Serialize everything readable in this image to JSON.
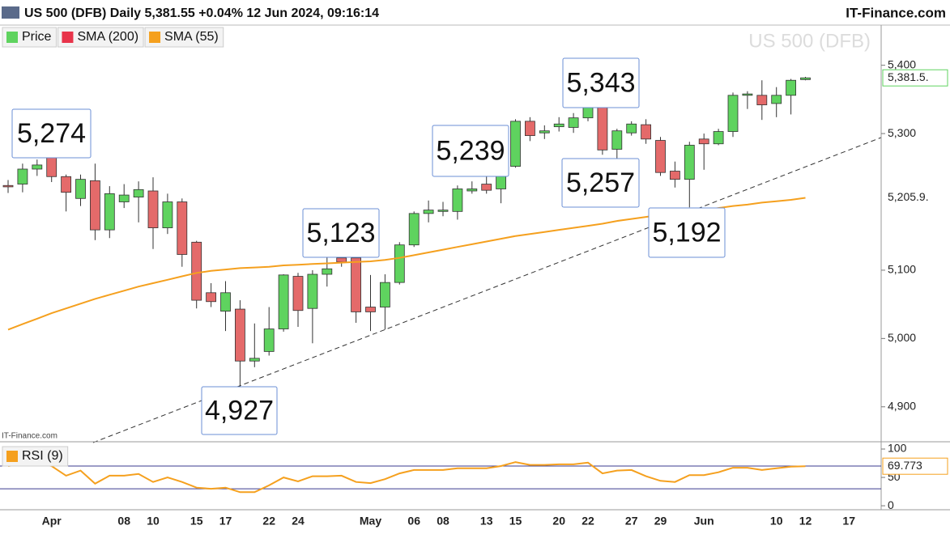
{
  "chart_data": [
    {
      "type": "candlestick",
      "title": "US 500 (DFB) Daily 5,381.55 +0.04% 12 Jun 2024, 09:16:14",
      "source": "IT-Finance.com",
      "watermark": "US 500 (DFB)",
      "categories": [
        null,
        null,
        null,
        "Apr",
        null,
        null,
        null,
        null,
        "08",
        null,
        "10",
        null,
        null,
        "15",
        null,
        "17",
        null,
        null,
        "22",
        null,
        "24",
        null,
        null,
        null,
        null,
        "May",
        null,
        null,
        "06",
        null,
        "08",
        null,
        null,
        "13",
        null,
        "15",
        null,
        null,
        "20",
        null,
        "22",
        null,
        null,
        "27",
        null,
        "29",
        null,
        null,
        "Jun",
        null,
        null,
        null,
        null,
        "10",
        null,
        "12",
        null,
        null,
        "17",
        null,
        null
      ],
      "series": [
        {
          "name": "Price",
          "color": "#5fd35f",
          "down_color": "#e46a6a",
          "last_label": "5,381.5.",
          "open": [
            5224,
            5226,
            5248,
            5273,
            5237,
            5205,
            5231,
            5159,
            5200,
            5207,
            5216,
            5162,
            5200,
            5141,
            5067,
            5040,
            5043,
            4967,
            4981,
            5014,
            5091,
            5044,
            5094,
            5118,
            5118,
            5046,
            5046,
            5082,
            5137,
            5183,
            5186,
            5186,
            5216,
            5226,
            5219,
            5252,
            5318,
            5301,
            5310,
            5309,
            5323,
            5342,
            5277,
            5301,
            5313,
            5290,
            5245,
            5233,
            5292,
            5285,
            5303,
            5356,
            5356,
            5344,
            5356,
            5379,
            null,
            null,
            null,
            null,
            null
          ],
          "high": [
            5232,
            5256,
            5262,
            5274,
            5240,
            5240,
            5256,
            5223,
            5226,
            5230,
            5236,
            5212,
            5205,
            5143,
            5081,
            5084,
            5056,
            5022,
            5046,
            5094,
            5096,
            5100,
            5120,
            5123,
            5123,
            5093,
            5094,
            5141,
            5186,
            5202,
            5200,
            5224,
            5230,
            5238,
            5253,
            5321,
            5324,
            5312,
            5324,
            5330,
            5343,
            5343,
            5307,
            5318,
            5321,
            5295,
            5259,
            5288,
            5300,
            5307,
            5360,
            5362,
            5378,
            5368,
            5380,
            5383,
            null,
            null,
            null,
            null,
            null
          ],
          "low": [
            5213,
            5214,
            5238,
            5229,
            5186,
            5194,
            5144,
            5147,
            5191,
            5170,
            5131,
            5153,
            5105,
            5044,
            5046,
            5011,
            4927,
            4958,
            4975,
            5010,
            5017,
            4993,
            5076,
            5105,
            5023,
            5011,
            5013,
            5079,
            5134,
            5170,
            5179,
            5174,
            5212,
            5212,
            5198,
            5250,
            5289,
            5292,
            5303,
            5301,
            5318,
            5269,
            5257,
            5297,
            5285,
            5238,
            5221,
            5192,
            5247,
            5283,
            5295,
            5336,
            5320,
            5324,
            5328,
            5378,
            null,
            null,
            null,
            null,
            null
          ],
          "close": [
            5222,
            5248,
            5254,
            5237,
            5214,
            5233,
            5159,
            5212,
            5210,
            5218,
            5162,
            5200,
            5123,
            5056,
            5054,
            5067,
            4967,
            4971,
            5014,
            5093,
            5041,
            5094,
            5102,
            5112,
            5039,
            5039,
            5082,
            5137,
            5183,
            5188,
            5188,
            5219,
            5219,
            5217,
            5252,
            5318,
            5297,
            5304,
            5314,
            5323,
            5342,
            5276,
            5304,
            5314,
            5292,
            5243,
            5233,
            5283,
            5285,
            5303,
            5356,
            5358,
            5342,
            5356,
            5378,
            5381.55,
            null,
            null,
            null,
            null,
            null
          ]
        },
        {
          "name": "SMA (200)",
          "color": "#e8344a"
        },
        {
          "name": "SMA (55)",
          "color": "#f5a01e",
          "last_label": "5,205.9.",
          "values": [
            5013,
            5021,
            5029,
            5037,
            5044,
            5051,
            5058,
            5064,
            5070,
            5076,
            5081,
            5086,
            5091,
            5096,
            5099,
            5101,
            5103,
            5104,
            5105,
            5107,
            5108,
            5109,
            5110,
            5111,
            5112,
            5113,
            5115,
            5118,
            5122,
            5126,
            5130,
            5134,
            5138,
            5142,
            5146,
            5150,
            5153,
            5156,
            5159,
            5162,
            5165,
            5168,
            5172,
            5175,
            5178,
            5181,
            5183,
            5185,
            5188,
            5191,
            5194,
            5196,
            5199,
            5201,
            5203,
            5205.9,
            null,
            null,
            null,
            null,
            null
          ]
        }
      ],
      "annotations": [
        "5,274",
        "4,927",
        "5,123",
        "5,239",
        "5,343",
        "5,257",
        "5,192"
      ],
      "ylim": [
        4850,
        5460
      ],
      "yticks": [
        {
          "value": 4900,
          "label": "4,900"
        },
        {
          "value": 5000,
          "label": "5,000"
        },
        {
          "value": 5100,
          "label": "5,100"
        },
        {
          "value": 5300,
          "label": "5,300"
        },
        {
          "value": 5400,
          "label": "5,400"
        }
      ]
    },
    {
      "type": "line",
      "series": [
        {
          "name": "RSI (9)",
          "color": "#f5a01e",
          "last_label": "69.773",
          "values": [
            70,
            74,
            76,
            70,
            53,
            62,
            39,
            53,
            53,
            56,
            42,
            50,
            42,
            32,
            30,
            32,
            24,
            24,
            36,
            50,
            43,
            52,
            52,
            53,
            42,
            40,
            47,
            57,
            63,
            63,
            63,
            66,
            66,
            66,
            70,
            77,
            72,
            72,
            73,
            73,
            76,
            57,
            62,
            63,
            52,
            44,
            42,
            54,
            54,
            59,
            67,
            67,
            63,
            66,
            69,
            69.773,
            null,
            null,
            null,
            null,
            null
          ]
        }
      ],
      "levels": [
        30,
        70
      ],
      "level_color": "#3b3b8f",
      "ylim": [
        -7,
        110
      ],
      "yticks": [
        0,
        50,
        100
      ]
    }
  ]
}
